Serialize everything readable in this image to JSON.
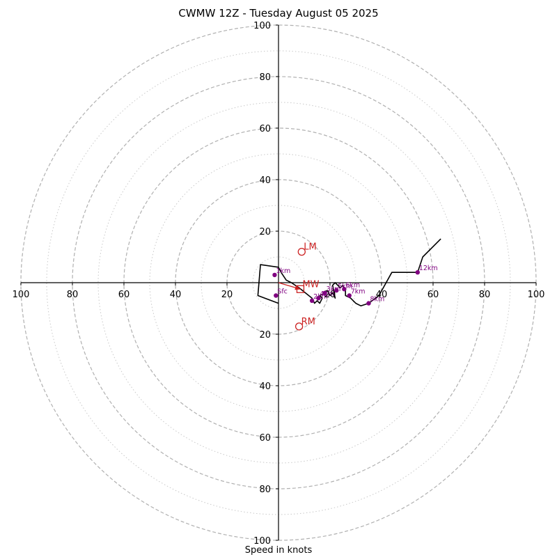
{
  "chart_data": {
    "type": "scatter",
    "title": "CWMW 12Z - Tuesday August 05 2025",
    "xlabel": "Speed in knots",
    "ylabel": "",
    "xlim": [
      -100,
      100
    ],
    "ylim": [
      -100,
      100
    ],
    "ring_major": [
      20,
      40,
      60,
      80,
      100
    ],
    "ring_minor": [
      10,
      30,
      50,
      70,
      90
    ],
    "tick_labels": [
      "20",
      "40",
      "60",
      "80",
      "100"
    ],
    "grid": true,
    "hodograph": [
      [
        0,
        -8
      ],
      [
        -8,
        -5
      ],
      [
        -7,
        7
      ],
      [
        0,
        6
      ],
      [
        1,
        4
      ],
      [
        3,
        1
      ],
      [
        5,
        0
      ],
      [
        8,
        -2
      ],
      [
        13,
        -6
      ],
      [
        14,
        -8
      ],
      [
        15,
        -7
      ],
      [
        16,
        -8
      ],
      [
        17,
        -6
      ],
      [
        16,
        -5
      ],
      [
        18,
        -4
      ],
      [
        19,
        -3
      ],
      [
        20,
        -5
      ],
      [
        21,
        -4
      ],
      [
        22,
        -6
      ],
      [
        21,
        -1
      ],
      [
        22,
        0
      ],
      [
        24,
        -2
      ],
      [
        25,
        -1
      ],
      [
        26,
        -3
      ],
      [
        26,
        -5
      ],
      [
        28,
        -6
      ],
      [
        30,
        -8
      ],
      [
        32,
        -9
      ],
      [
        35,
        -8
      ],
      [
        39,
        -5
      ],
      [
        44,
        4
      ],
      [
        54,
        4
      ],
      [
        56,
        10
      ],
      [
        63,
        17
      ]
    ],
    "height_markers": [
      {
        "label": "Sfc",
        "x": -1,
        "y": -5
      },
      {
        "label": "1km",
        "x": -1.5,
        "y": 3
      },
      {
        "label": "2km",
        "x": 13,
        "y": -7
      },
      {
        "label": "3km",
        "x": 18,
        "y": -4
      },
      {
        "label": "4km",
        "x": 15.5,
        "y": -6
      },
      {
        "label": "5km",
        "x": 22.5,
        "y": -3
      },
      {
        "label": "6km",
        "x": 25.5,
        "y": -2.5
      },
      {
        "label": "7km",
        "x": 27.5,
        "y": -5
      },
      {
        "label": "8km",
        "x": 35,
        "y": -8
      },
      {
        "label": "12km",
        "x": 54,
        "y": 4
      }
    ],
    "storm_motion": [
      {
        "label": "LM",
        "x": 9,
        "y": 12,
        "marker": "circle"
      },
      {
        "label": "RM",
        "x": 8,
        "y": -17,
        "marker": "circle"
      },
      {
        "label": "MW",
        "x": 8.5,
        "y": -2.5,
        "marker": "square"
      }
    ],
    "motion_vector": {
      "from": [
        0,
        0
      ],
      "to": [
        8.5,
        -2.5
      ]
    },
    "colors": {
      "hodograph": "#000000",
      "height_marker": "#800080",
      "storm_motion": "#cc2222",
      "grid": "#b0b0b0",
      "axis": "#000000"
    }
  }
}
